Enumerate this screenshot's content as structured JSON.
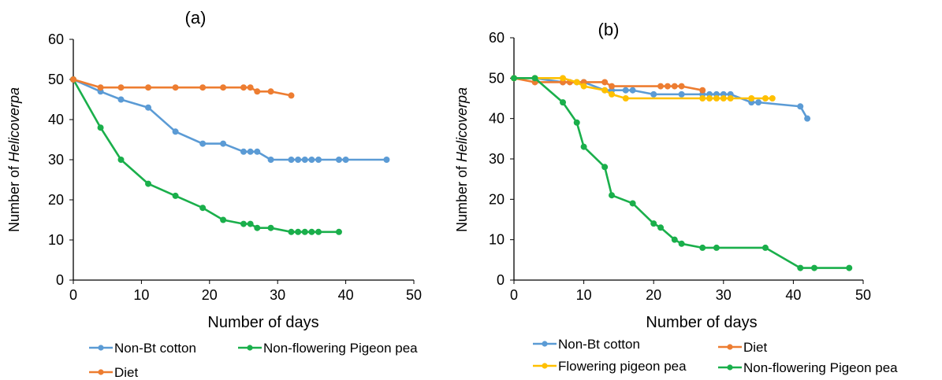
{
  "chart_data": [
    {
      "type": "line",
      "panel_label": "(a)",
      "xlabel": "Number of days",
      "ylabel_prefix": "Number of ",
      "ylabel_italic": "Helicoverpa",
      "xlim": [
        0,
        50
      ],
      "ylim": [
        0,
        60
      ],
      "xticks": [
        "0",
        "10",
        "20",
        "30",
        "40",
        "50"
      ],
      "yticks": [
        "0",
        "10",
        "20",
        "30",
        "40",
        "50",
        "60"
      ],
      "grid": false,
      "legend_position": "bottom",
      "series": [
        {
          "name": "Non-Bt cotton",
          "color": "#5b9bd5",
          "points": [
            [
              0,
              50
            ],
            [
              4,
              47
            ],
            [
              7,
              45
            ],
            [
              11,
              43
            ],
            [
              15,
              37
            ],
            [
              19,
              34
            ],
            [
              22,
              34
            ],
            [
              25,
              32
            ],
            [
              26,
              32
            ],
            [
              27,
              32
            ],
            [
              29,
              30
            ],
            [
              32,
              30
            ],
            [
              33,
              30
            ],
            [
              34,
              30
            ],
            [
              35,
              30
            ],
            [
              36,
              30
            ],
            [
              39,
              30
            ],
            [
              40,
              30
            ],
            [
              46,
              30
            ]
          ]
        },
        {
          "name": "Non-flowering Pigeon pea",
          "color": "#1aaf4b",
          "points": [
            [
              0,
              50
            ],
            [
              4,
              38
            ],
            [
              7,
              30
            ],
            [
              11,
              24
            ],
            [
              15,
              21
            ],
            [
              19,
              18
            ],
            [
              22,
              15
            ],
            [
              25,
              14
            ],
            [
              26,
              14
            ],
            [
              27,
              13
            ],
            [
              29,
              13
            ],
            [
              32,
              12
            ],
            [
              33,
              12
            ],
            [
              34,
              12
            ],
            [
              35,
              12
            ],
            [
              36,
              12
            ],
            [
              39,
              12
            ]
          ]
        },
        {
          "name": "Diet",
          "color": "#ed7d31",
          "points": [
            [
              0,
              50
            ],
            [
              4,
              48
            ],
            [
              7,
              48
            ],
            [
              11,
              48
            ],
            [
              15,
              48
            ],
            [
              19,
              48
            ],
            [
              22,
              48
            ],
            [
              25,
              48
            ],
            [
              26,
              48
            ],
            [
              27,
              47
            ],
            [
              29,
              47
            ],
            [
              32,
              46
            ]
          ]
        }
      ]
    },
    {
      "type": "line",
      "panel_label": "(b)",
      "xlabel": "Number of days",
      "ylabel_prefix": "Number of ",
      "ylabel_italic": "Helicoverpa",
      "xlim": [
        0,
        50
      ],
      "ylim": [
        0,
        60
      ],
      "xticks": [
        "0",
        "10",
        "20",
        "30",
        "40",
        "50"
      ],
      "yticks": [
        "0",
        "10",
        "20",
        "30",
        "40",
        "50",
        "60"
      ],
      "grid": false,
      "legend_position": "bottom",
      "series": [
        {
          "name": "Non-Bt cotton",
          "color": "#5b9bd5",
          "points": [
            [
              0,
              50
            ],
            [
              3,
              50
            ],
            [
              7,
              49
            ],
            [
              9,
              49
            ],
            [
              10,
              49
            ],
            [
              13,
              47
            ],
            [
              14,
              47
            ],
            [
              16,
              47
            ],
            [
              17,
              47
            ],
            [
              20,
              46
            ],
            [
              24,
              46
            ],
            [
              27,
              46
            ],
            [
              28,
              46
            ],
            [
              29,
              46
            ],
            [
              30,
              46
            ],
            [
              31,
              46
            ],
            [
              34,
              44
            ],
            [
              35,
              44
            ],
            [
              41,
              43
            ],
            [
              42,
              40
            ]
          ]
        },
        {
          "name": "Diet",
          "color": "#ed7d31",
          "points": [
            [
              0,
              50
            ],
            [
              3,
              49
            ],
            [
              7,
              49
            ],
            [
              8,
              49
            ],
            [
              10,
              49
            ],
            [
              13,
              49
            ],
            [
              14,
              48
            ],
            [
              21,
              48
            ],
            [
              22,
              48
            ],
            [
              23,
              48
            ],
            [
              24,
              48
            ],
            [
              27,
              47
            ]
          ]
        },
        {
          "name": "Flowering pigeon pea",
          "color": "#ffc000",
          "points": [
            [
              0,
              50
            ],
            [
              3,
              50
            ],
            [
              7,
              50
            ],
            [
              9,
              49
            ],
            [
              10,
              48
            ],
            [
              13,
              47
            ],
            [
              14,
              46
            ],
            [
              16,
              45
            ],
            [
              27,
              45
            ],
            [
              28,
              45
            ],
            [
              29,
              45
            ],
            [
              30,
              45
            ],
            [
              31,
              45
            ],
            [
              34,
              45
            ],
            [
              36,
              45
            ],
            [
              37,
              45
            ]
          ]
        },
        {
          "name": "Non-flowering Pigeon pea",
          "color": "#1aaf4b",
          "points": [
            [
              0,
              50
            ],
            [
              3,
              50
            ],
            [
              7,
              44
            ],
            [
              9,
              39
            ],
            [
              10,
              33
            ],
            [
              13,
              28
            ],
            [
              14,
              21
            ],
            [
              17,
              19
            ],
            [
              20,
              14
            ],
            [
              21,
              13
            ],
            [
              23,
              10
            ],
            [
              24,
              9
            ],
            [
              27,
              8
            ],
            [
              29,
              8
            ],
            [
              36,
              8
            ],
            [
              41,
              3
            ],
            [
              43,
              3
            ],
            [
              48,
              3
            ]
          ]
        }
      ]
    }
  ]
}
